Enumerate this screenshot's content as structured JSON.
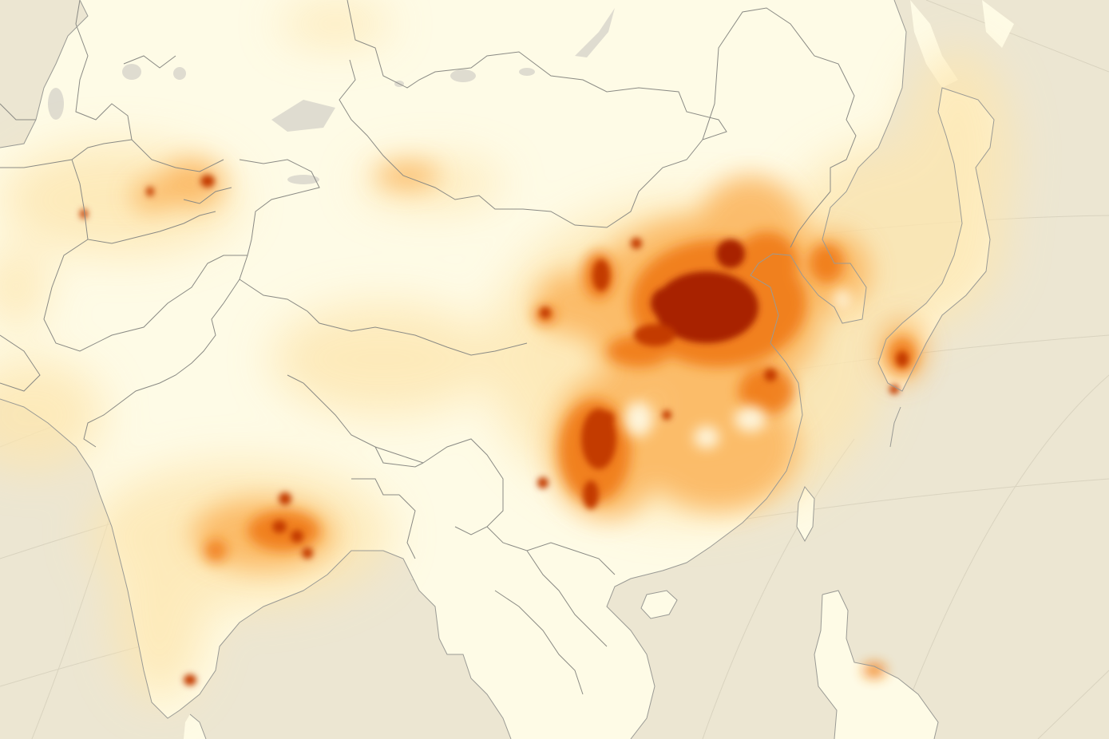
{
  "map": {
    "colors": {
      "ocean": "#ece6d2",
      "land": "#fefbe6",
      "border": "#8a8a84",
      "coast": "#9a9a94",
      "lake": "#dfdcd0",
      "graticule": "#d9d3bf",
      "low": "#fde6b0",
      "medium": "#fbb45c",
      "high": "#f07a12",
      "very_high": "#c33a05",
      "extreme": "#a82000"
    },
    "hotspots": [
      {
        "region": "north-china-plain",
        "level": "extreme"
      },
      {
        "region": "shanxi",
        "level": "very_high"
      },
      {
        "region": "sichuan-chongqing",
        "level": "very_high"
      },
      {
        "region": "yangtze-river-delta",
        "level": "high"
      },
      {
        "region": "pearl-river-delta",
        "level": "medium"
      },
      {
        "region": "korea",
        "level": "high"
      },
      {
        "region": "tokyo",
        "level": "very_high"
      },
      {
        "region": "eastern-india",
        "level": "very_high"
      },
      {
        "region": "chennai",
        "level": "very_high"
      },
      {
        "region": "tashkent",
        "level": "very_high"
      },
      {
        "region": "manila",
        "level": "high"
      }
    ]
  }
}
